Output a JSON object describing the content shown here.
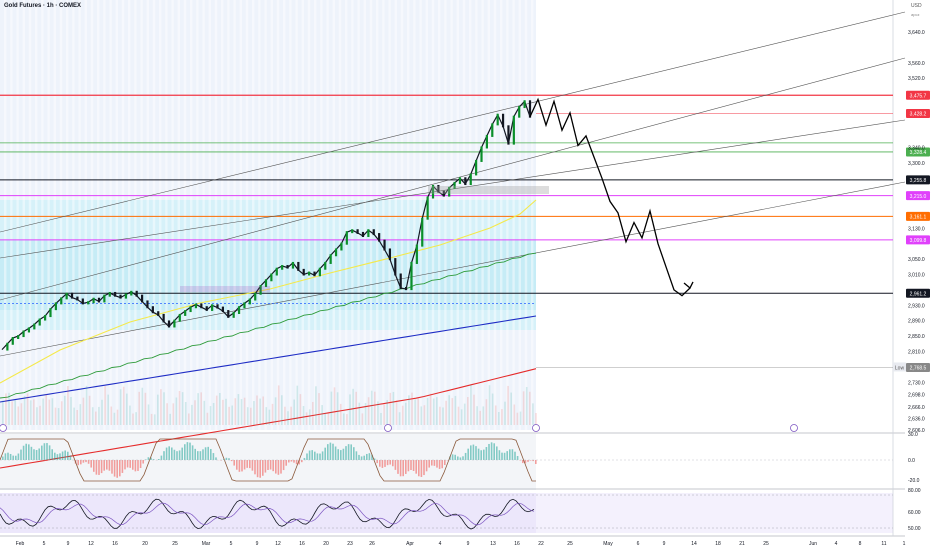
{
  "header": {
    "title": "Gold Futures · 1h · COMEX",
    "currency": "USD",
    "currency_sub": "apcz"
  },
  "chart_data": {
    "type": "line",
    "title": "Gold Futures · 1h · COMEX",
    "price_axis": {
      "ticks": [
        3640.0,
        3560.0,
        3520.0,
        3340.0,
        3300.0,
        3130.0,
        3050.0,
        3010.0,
        2930.0,
        2890.0,
        2850.0,
        2810.0,
        2730.0,
        2698.0,
        2666.0,
        2636.0,
        2606.0
      ],
      "tick_labels": [
        "3,640.0",
        "3,560.0",
        "3,520.0",
        "3,340.0",
        "3,300.0",
        "3,130.0",
        "3,050.0",
        "3,010.0",
        "2,930.0",
        "2,890.0",
        "2,850.0",
        "2,810.0",
        "2,730.0",
        "2,698.0",
        "2,666.0",
        "2,636.0",
        "2,606.0"
      ]
    },
    "time_axis": {
      "labels": [
        "Feb",
        "5",
        "9",
        "12",
        "16",
        "20",
        "25",
        "Mar",
        "5",
        "9",
        "12",
        "16",
        "20",
        "23",
        "26",
        "Apr",
        "4",
        "9",
        "13",
        "16",
        "22",
        "25",
        "May",
        "6",
        "9",
        "14",
        "18",
        "21",
        "25",
        "Jun",
        "4",
        "8",
        "11",
        "1"
      ]
    },
    "levels": [
      {
        "value": 3475.7,
        "label": "3,475.7",
        "color": "#f23645"
      },
      {
        "value": 3428.2,
        "label": "3,428.2",
        "color": "#f23645"
      },
      {
        "value": 3328.4,
        "label": "3,328.4",
        "color": "#4caf50"
      },
      {
        "value": 3255.8,
        "label": "3,255.8",
        "color": "#131722"
      },
      {
        "value": 3215.0,
        "label": "3,215.0",
        "color": "#e040fb"
      },
      {
        "value": 3161.1,
        "label": "3,161.1",
        "color": "#ff6d00"
      },
      {
        "value": 3099.8,
        "label": "3,099.8",
        "color": "#e040fb"
      },
      {
        "value": 2961.2,
        "label": "2,961.2",
        "color": "#131722"
      },
      {
        "value": 2768.5,
        "label": "2,768.5",
        "color": "#888888"
      }
    ],
    "low_label": "Low",
    "series": [
      {
        "values": [
          2815,
          2830,
          2845,
          2850,
          2862,
          2870,
          2880,
          2893,
          2902,
          2920,
          2935,
          2948,
          2960,
          2950,
          2945,
          2935,
          2938,
          2947,
          2940,
          2955,
          2962,
          2955,
          2950,
          2958,
          2965,
          2955,
          2940,
          2925,
          2912,
          2905,
          2888,
          2875,
          2890,
          2905,
          2915,
          2925,
          2932,
          2925,
          2918,
          2930,
          2924,
          2915,
          2900,
          2910,
          2925,
          2935,
          2945,
          2960,
          2980,
          2995,
          3010,
          3025,
          3032,
          3028,
          3040,
          3022,
          3010,
          3015,
          3008,
          3025,
          3040,
          3060,
          3075,
          3090,
          3120,
          3125,
          3118,
          3110,
          3125,
          3115,
          3098,
          3075,
          3050,
          3010,
          2975,
          2972,
          3040,
          3085,
          3155,
          3210,
          3240,
          3225,
          3215,
          3235,
          3248,
          3260,
          3245,
          3270,
          3305,
          3340,
          3370,
          3400,
          3425,
          3395,
          3350,
          3420,
          3445,
          3460,
          3420
        ]
      }
    ],
    "projection": {
      "values": [
        3420,
        3465,
        3398,
        3460,
        3385,
        3430,
        3345,
        3370,
        3315,
        3260,
        3200,
        3170,
        3095,
        3145,
        3105,
        3175,
        3090,
        3030,
        2970,
        2955,
        2975
      ],
      "color": "#000000"
    }
  }
}
